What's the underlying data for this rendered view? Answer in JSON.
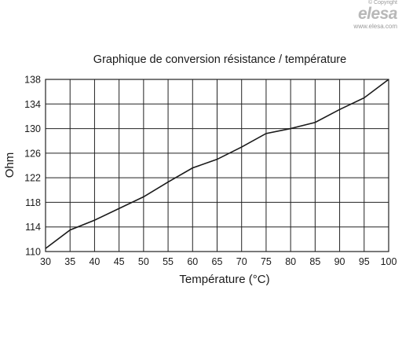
{
  "watermark": {
    "copyright": "© Copyright",
    "logo": "elesa",
    "url": "www.elesa.com"
  },
  "chart_data": {
    "type": "line",
    "title": "Graphique de conversion résistance / température",
    "xlabel": "Température (°C)",
    "ylabel": "Ohm",
    "x": [
      30,
      35,
      40,
      45,
      50,
      55,
      60,
      65,
      70,
      75,
      80,
      85,
      90,
      95,
      100
    ],
    "series": [
      {
        "values": [
          110.5,
          113.5,
          115.1,
          117.0,
          118.9,
          121.3,
          123.6,
          125.0,
          127.0,
          129.2,
          130.0,
          131.0,
          133.1,
          135.0,
          138.0
        ]
      }
    ],
    "xlim": [
      30,
      100
    ],
    "ylim": [
      110,
      138
    ],
    "xticks": [
      30,
      35,
      40,
      45,
      50,
      55,
      60,
      65,
      70,
      75,
      80,
      85,
      90,
      95,
      100
    ],
    "yticks": [
      110,
      114,
      118,
      122,
      126,
      130,
      134,
      138
    ],
    "grid": true,
    "line_color": "#1a1a1a",
    "grid_color": "#222222"
  }
}
